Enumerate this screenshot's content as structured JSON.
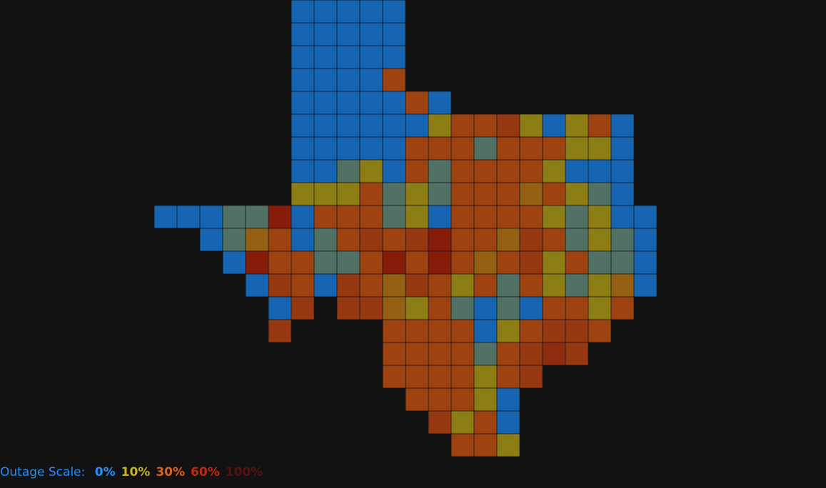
{
  "map": {
    "county_outage": [
      0,
      0,
      0,
      0,
      0,
      0,
      0,
      0,
      0,
      0,
      0,
      0,
      0,
      0,
      0,
      0,
      0,
      0,
      0,
      30,
      0,
      0,
      0,
      0,
      0,
      30,
      0,
      0,
      0,
      0,
      0,
      0,
      0,
      10,
      30,
      30,
      40,
      10,
      0,
      10,
      30,
      0,
      0,
      0,
      0,
      0,
      0,
      30,
      30,
      30,
      5,
      30,
      30,
      30,
      10,
      10,
      0,
      0,
      0,
      5,
      10,
      0,
      30,
      5,
      30,
      30,
      30,
      30,
      10,
      0,
      0,
      0,
      10,
      10,
      10,
      30,
      5,
      10,
      5,
      30,
      30,
      30,
      20,
      30,
      10,
      5,
      0,
      0,
      0,
      0,
      5,
      5,
      60,
      0,
      30,
      30,
      30,
      5,
      10,
      0,
      30,
      30,
      30,
      30,
      10,
      5,
      10,
      0,
      0,
      0,
      5,
      20,
      30,
      0,
      5,
      30,
      40,
      30,
      40,
      60,
      30,
      30,
      20,
      40,
      30,
      5,
      10,
      5,
      0,
      0,
      60,
      30,
      30,
      5,
      5,
      30,
      60,
      30,
      60,
      30,
      20,
      30,
      40,
      10,
      30,
      5,
      5,
      0,
      0,
      40,
      30,
      0,
      40,
      30,
      20,
      40,
      30,
      10,
      30,
      5,
      30,
      10,
      5,
      10,
      20,
      0,
      0,
      40,
      40,
      40,
      20,
      10,
      30,
      5,
      0,
      5,
      0,
      30,
      30,
      10,
      30,
      40,
      30,
      30,
      30,
      30,
      0,
      10,
      30,
      40,
      40,
      30,
      30,
      30,
      30,
      30,
      5,
      30,
      40,
      50,
      40,
      30,
      30,
      30,
      30,
      10,
      30,
      40,
      30,
      30,
      30,
      10,
      0,
      40,
      10,
      30,
      0,
      30,
      30,
      10
    ]
  },
  "legend": {
    "title": "Outage Scale:",
    "scale": [
      {
        "value": 0,
        "label": "0%",
        "color": "#1e90ff"
      },
      {
        "value": 10,
        "label": "10%",
        "color": "#c8b41e"
      },
      {
        "value": 30,
        "label": "30%",
        "color": "#e0601a"
      },
      {
        "value": 60,
        "label": "60%",
        "color": "#c02a10"
      },
      {
        "value": 100,
        "label": "100%",
        "color": "#5a1010"
      }
    ]
  }
}
